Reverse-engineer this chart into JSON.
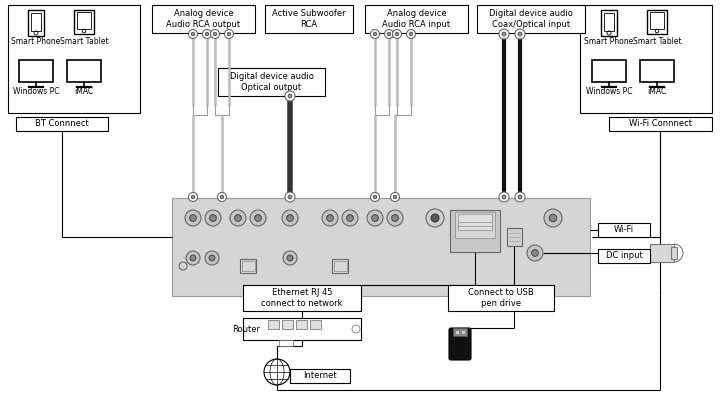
{
  "bg": "#ffffff",
  "panel_fc": "#d8d8d8",
  "panel_ec": "#aaaaaa",
  "box_ec": "#000000",
  "port_fc": "#c8c8c8",
  "port_ec": "#666666",
  "cable_gray": "#bbbbbb",
  "cable_dark": "#222222",
  "fs": 6.0,
  "fs_sm": 5.5,
  "labels": {
    "analog_rca_out": "Analog device\nAudio RCA output",
    "active_sub": "Active Subwoofer\nRCA",
    "analog_rca_in": "Analog device\nAudio RCA input",
    "digital_coax": "Digital device audio\nCoax/Optical input",
    "digital_opt_out": "Digital device audio\nOptical output",
    "bt": "BT Connnect",
    "wifi_con": "Wi-Fi Connnect",
    "wifi": "Wi-Fi",
    "dc": "DC input",
    "eth": "Ethernet RJ 45\nconnect to network",
    "usb": "Connect to USB\npen drive",
    "router": "Router",
    "internet": "Internet",
    "sp": "Smart Phone",
    "st": "Smart Tablet",
    "wp": "Windows PC",
    "im": "iMAC"
  }
}
